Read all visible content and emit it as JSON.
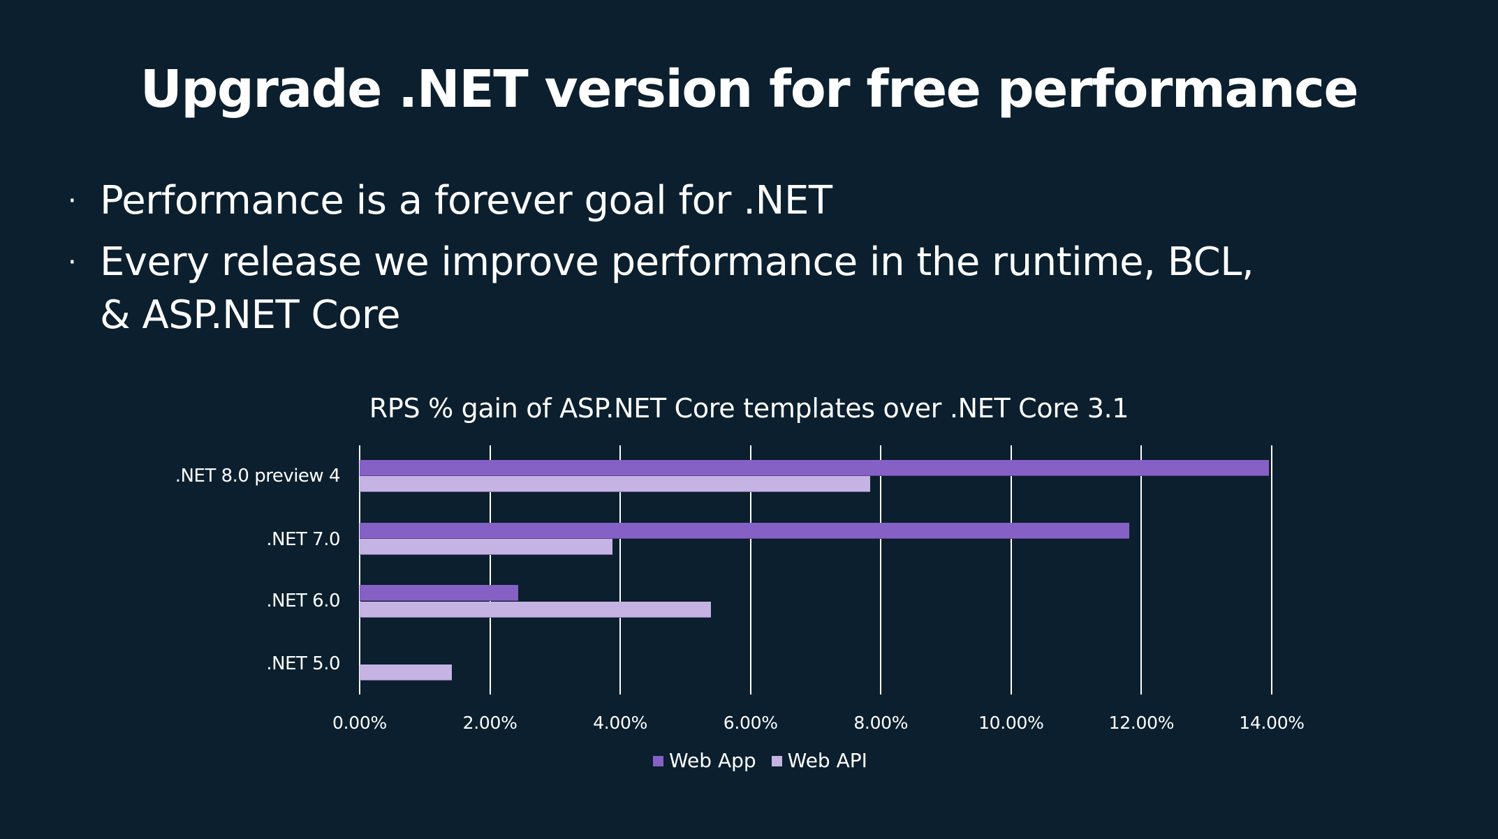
{
  "slide": {
    "title": "Upgrade .NET version for free performance",
    "bullet_glyph": "·",
    "bullets": [
      "Performance is a forever goal for .NET",
      "Every release we improve performance in the runtime, BCL, & ASP.NET Core"
    ]
  },
  "colors": {
    "background": "#0B1F2E",
    "web_app": "#8661C5",
    "web_api": "#C5B4E3",
    "text": "#FFFFFF",
    "gridline": "#FFFFFF"
  },
  "chart_data": {
    "type": "bar",
    "orientation": "horizontal",
    "title": "RPS % gain of ASP.NET Core templates over .NET Core 3.1",
    "categories": [
      ".NET 8.0 preview 4",
      ".NET 7.0",
      ".NET 6.0",
      ".NET 5.0"
    ],
    "series": [
      {
        "name": "Web App",
        "color": "#8661C5",
        "values": [
          13.96,
          11.81,
          2.43,
          0.0
        ]
      },
      {
        "name": "Web API",
        "color": "#C5B4E3",
        "values": [
          7.84,
          3.88,
          5.39,
          1.41
        ]
      }
    ],
    "xlabel": "",
    "ylabel": "",
    "xlim": [
      0,
      14
    ],
    "x_ticks": [
      "0.00%",
      "2.00%",
      "4.00%",
      "6.00%",
      "8.00%",
      "10.00%",
      "12.00%",
      "14.00%"
    ],
    "grid": "vertical major gridlines",
    "legend_position": "bottom",
    "legend": [
      "Web App",
      "Web API"
    ]
  }
}
